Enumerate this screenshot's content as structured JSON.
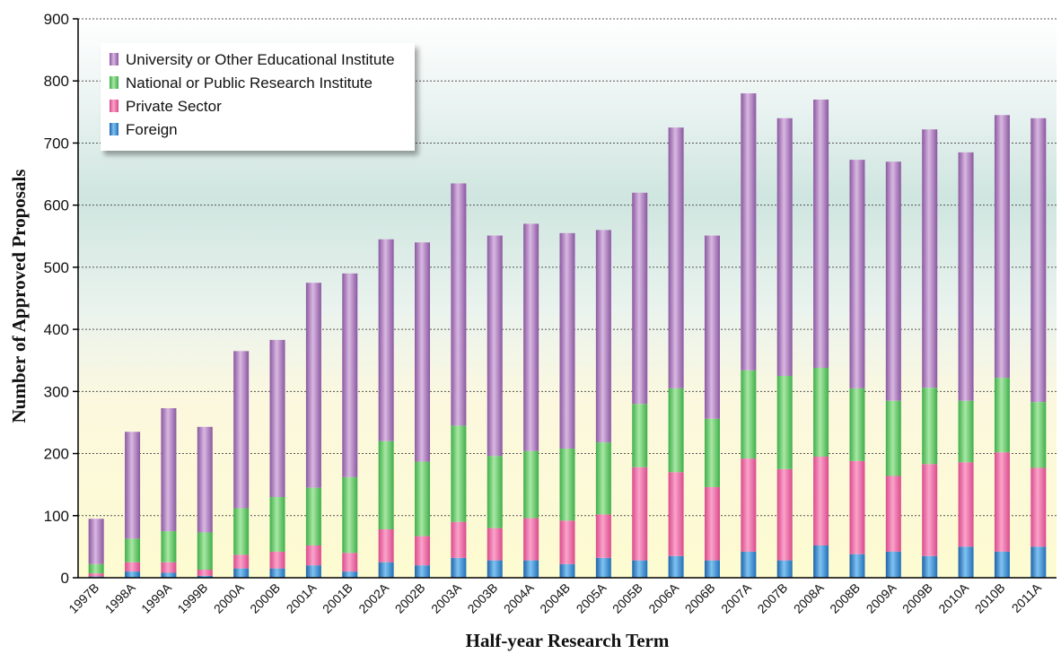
{
  "chart_data": {
    "type": "bar",
    "stacked": true,
    "xlabel": "Half-year Research Term",
    "ylabel": "Number of Approved Proposals",
    "ylim": [
      0,
      900
    ],
    "yticks": [
      0,
      100,
      200,
      300,
      400,
      500,
      600,
      700,
      800,
      900
    ],
    "grid": true,
    "legend_position": "top-left",
    "categories": [
      "1997B",
      "1998A",
      "1999A",
      "1999B",
      "2000A",
      "2000B",
      "2001A",
      "2001B",
      "2002A",
      "2002B",
      "2003A",
      "2003B",
      "2004A",
      "2004B",
      "2005A",
      "2005B",
      "2006A",
      "2006B",
      "2007A",
      "2007B",
      "2008A",
      "2008B",
      "2009A",
      "2009B",
      "2010A",
      "2010B",
      "2011A"
    ],
    "series": [
      {
        "name": "Foreign",
        "color": "#3d8fd0",
        "values": [
          2,
          10,
          8,
          3,
          15,
          15,
          20,
          10,
          25,
          20,
          32,
          28,
          28,
          22,
          32,
          28,
          35,
          28,
          42,
          28,
          52,
          38,
          42,
          35,
          50,
          42,
          50
        ]
      },
      {
        "name": "Private Sector",
        "color": "#ee6aa7",
        "values": [
          5,
          15,
          17,
          10,
          22,
          27,
          32,
          30,
          53,
          47,
          58,
          52,
          68,
          70,
          70,
          150,
          135,
          118,
          150,
          147,
          143,
          150,
          122,
          148,
          136,
          160,
          127
        ]
      },
      {
        "name": "National or Public Research Institute",
        "color": "#6fcf6f",
        "values": [
          15,
          38,
          50,
          60,
          75,
          88,
          93,
          122,
          142,
          120,
          155,
          116,
          108,
          116,
          116,
          102,
          135,
          110,
          142,
          150,
          143,
          117,
          121,
          123,
          99,
          120,
          106
        ]
      },
      {
        "name": "University or Other Educational Institute",
        "color": "#b37fc0",
        "values": [
          73,
          172,
          198,
          170,
          253,
          253,
          330,
          328,
          325,
          353,
          390,
          355,
          366,
          347,
          342,
          340,
          420,
          295,
          446,
          415,
          432,
          368,
          385,
          416,
          400,
          423,
          457
        ]
      }
    ],
    "legend_order": [
      "University or Other Educational Institute",
      "National or Public Research Institute",
      "Private Sector",
      "Foreign"
    ]
  }
}
